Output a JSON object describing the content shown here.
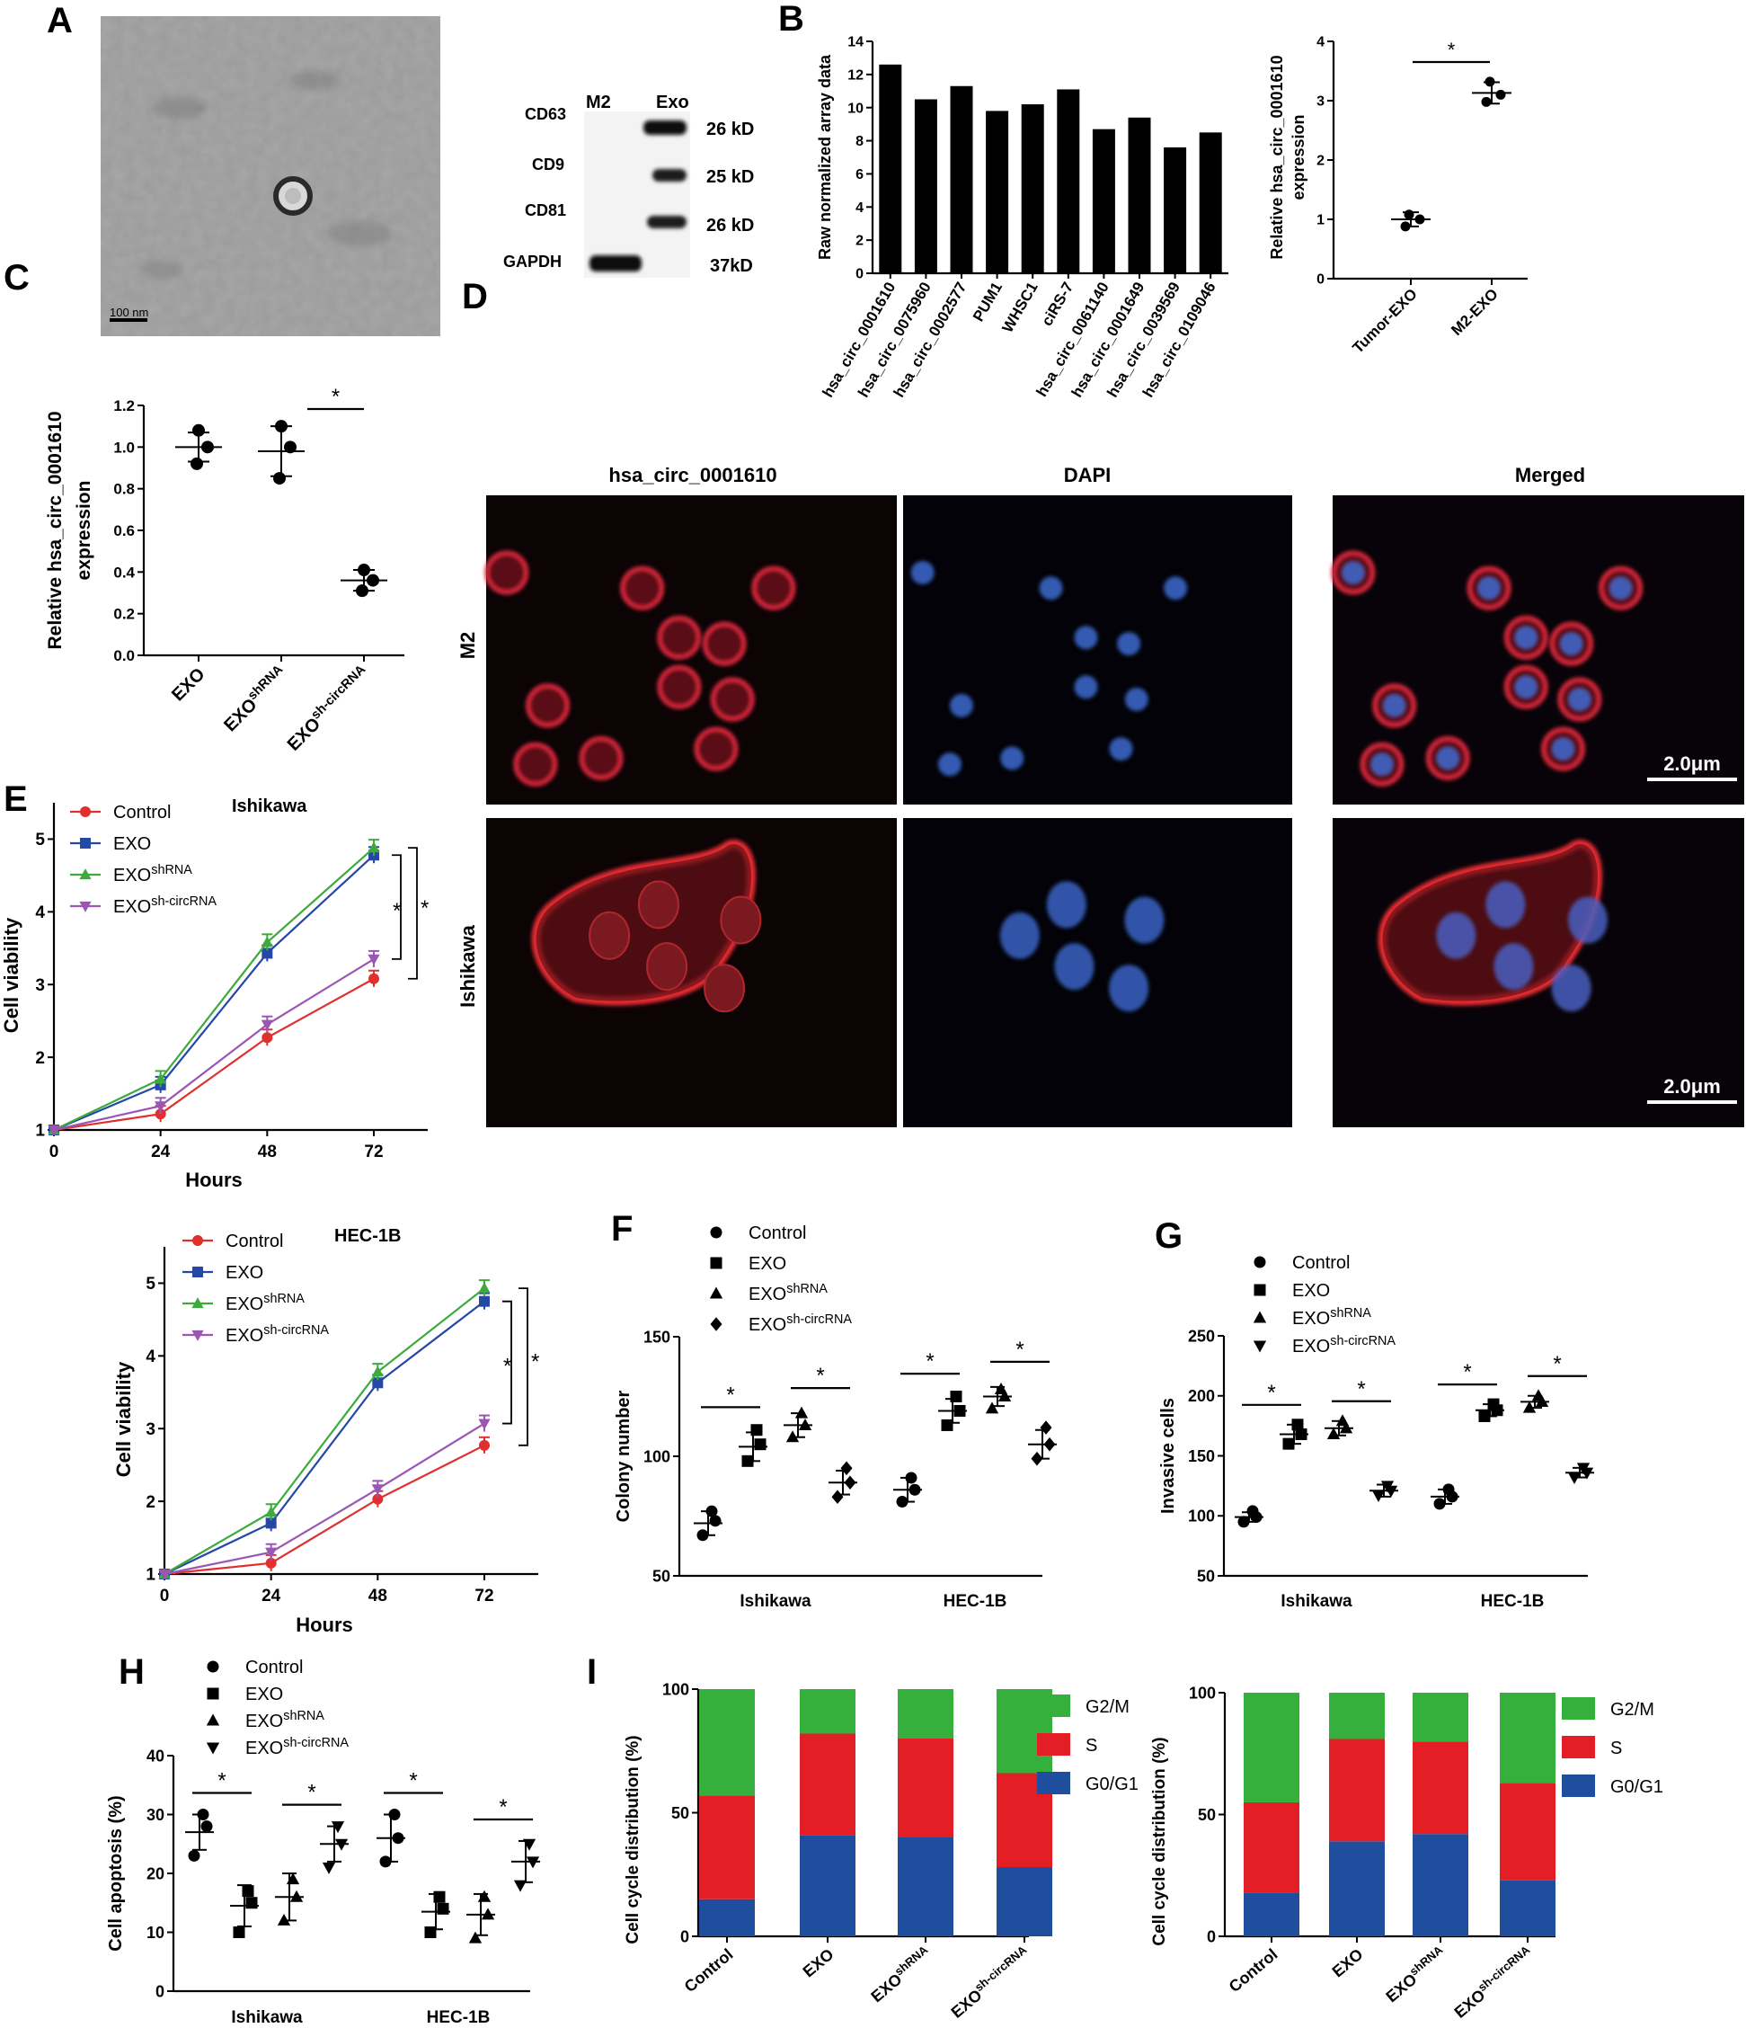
{
  "panel_letters": [
    "A",
    "B",
    "C",
    "D",
    "E",
    "F",
    "G",
    "H",
    "I"
  ],
  "panel_a": {
    "scale_bar": "100 nm",
    "blot_columns": [
      "M2",
      "Exo"
    ],
    "blot_rows": [
      {
        "protein": "CD63",
        "size": "26 kD"
      },
      {
        "protein": "CD9",
        "size": "25 kD"
      },
      {
        "protein": "CD81",
        "size": "26 kD"
      },
      {
        "protein": "GAPDH",
        "size": "37kD"
      }
    ]
  },
  "panel_d": {
    "columns": [
      "hsa_circ_0001610",
      "DAPI",
      "Merged"
    ],
    "rows": [
      "M2",
      "Ishikawa"
    ],
    "scale_label": "2.0μm"
  },
  "chart_data": [
    {
      "id": "B1",
      "type": "bar",
      "ylabel": "Raw normalized array data",
      "ylim": [
        0,
        14
      ],
      "yticks": [
        0,
        2,
        4,
        6,
        8,
        10,
        12,
        14
      ],
      "categories": [
        "hsa_circ_0001610",
        "hsa_circ_0075960",
        "hsa_circ_0002577",
        "PUM1",
        "WHSC1",
        "ciRS-7",
        "hsa_circ_0061140",
        "hsa_circ_0001649",
        "hsa_circ_0039569",
        "hsa_circ_0109046"
      ],
      "values": [
        12.6,
        10.5,
        11.3,
        9.8,
        10.2,
        11.1,
        8.7,
        9.4,
        7.6,
        8.5
      ]
    },
    {
      "id": "B2",
      "type": "scatter",
      "ylabel": "Relative hsa_circ_0001610 expression",
      "ylim": [
        0,
        4
      ],
      "yticks": [
        0,
        1,
        2,
        3,
        4
      ],
      "categories": [
        "Tumor-EXO",
        "M2-EXO"
      ],
      "points": [
        [
          1.08,
          0.88,
          1.0
        ],
        [
          3.32,
          2.98,
          3.1
        ]
      ],
      "mean": [
        1.0,
        3.13
      ],
      "sd": [
        0.12,
        0.18
      ],
      "sig": [
        {
          "from": 0,
          "to": 1,
          "label": "*"
        }
      ]
    },
    {
      "id": "C",
      "type": "scatter",
      "ylabel": "Relative hsa_circ_0001610 expression",
      "ylim": [
        0,
        1.2
      ],
      "yticks": [
        0.0,
        0.2,
        0.4,
        0.6,
        0.8,
        1.0,
        1.2
      ],
      "categories": [
        "EXO",
        "EXO^shRNA",
        "EXO^sh-circRNA"
      ],
      "points": [
        [
          1.08,
          0.92,
          1.0
        ],
        [
          1.1,
          0.85,
          1.0
        ],
        [
          0.41,
          0.31,
          0.36
        ]
      ],
      "mean": [
        1.0,
        0.98,
        0.36
      ],
      "sd": [
        0.07,
        0.12,
        0.05
      ],
      "sig": [
        {
          "from": 1,
          "to": 2,
          "label": "*"
        }
      ]
    },
    {
      "id": "E1",
      "type": "line",
      "title": "Ishikawa",
      "xlabel": "Hours",
      "ylabel": "Cell viability",
      "x": [
        0,
        24,
        48,
        72
      ],
      "ylim": [
        1,
        5.5
      ],
      "yticks": [
        1,
        2,
        3,
        4,
        5
      ],
      "series": [
        {
          "name": "Control",
          "color": "#e0302e",
          "marker": "circle",
          "values": [
            1.0,
            1.22,
            2.27,
            3.08
          ]
        },
        {
          "name": "EXO",
          "color": "#2447a8",
          "marker": "square",
          "values": [
            1.0,
            1.62,
            3.43,
            4.78
          ]
        },
        {
          "name": "EXO^shRNA",
          "color": "#3cab3c",
          "marker": "triangle",
          "values": [
            1.0,
            1.7,
            3.58,
            4.88
          ]
        },
        {
          "name": "EXO^sh-circRNA",
          "color": "#9b55b5",
          "marker": "triangle-down",
          "values": [
            1.0,
            1.33,
            2.45,
            3.35
          ]
        }
      ],
      "sig": [
        "*",
        "*"
      ]
    },
    {
      "id": "E2",
      "type": "line",
      "title": "HEC-1B",
      "xlabel": "Hours",
      "ylabel": "Cell viability",
      "x": [
        0,
        24,
        48,
        72
      ],
      "ylim": [
        1,
        5.5
      ],
      "yticks": [
        1,
        2,
        3,
        4,
        5
      ],
      "series": [
        {
          "name": "Control",
          "color": "#e0302e",
          "marker": "circle",
          "values": [
            1.0,
            1.15,
            2.03,
            2.77
          ]
        },
        {
          "name": "EXO",
          "color": "#2447a8",
          "marker": "square",
          "values": [
            1.0,
            1.7,
            3.63,
            4.75
          ]
        },
        {
          "name": "EXO^shRNA",
          "color": "#3cab3c",
          "marker": "triangle",
          "values": [
            1.0,
            1.85,
            3.78,
            4.93
          ]
        },
        {
          "name": "EXO^sh-circRNA",
          "color": "#9b55b5",
          "marker": "triangle-down",
          "values": [
            1.0,
            1.3,
            2.17,
            3.07
          ]
        }
      ],
      "sig": [
        "*",
        "*"
      ]
    },
    {
      "id": "F",
      "type": "scatter",
      "ylabel": "Colony number",
      "ylim": [
        50,
        150
      ],
      "yticks": [
        50,
        100,
        150
      ],
      "groups": [
        "Ishikawa",
        "HEC-1B"
      ],
      "legend": [
        {
          "name": "Control",
          "marker": "circle"
        },
        {
          "name": "EXO",
          "marker": "square"
        },
        {
          "name": "EXO^shRNA",
          "marker": "triangle"
        },
        {
          "name": "EXO^sh-circRNA",
          "marker": "diamond"
        }
      ],
      "points": [
        [
          [
            77,
            67,
            73
          ],
          [
            111,
            98,
            105
          ],
          [
            118,
            108,
            113
          ],
          [
            95,
            83,
            89
          ]
        ],
        [
          [
            91,
            81,
            86
          ],
          [
            125,
            113,
            119
          ],
          [
            128,
            120,
            125
          ],
          [
            112,
            99,
            105
          ]
        ]
      ],
      "mean": [
        [
          72,
          104,
          113,
          89
        ],
        [
          86,
          119,
          125,
          105
        ]
      ],
      "sd": [
        [
          5,
          6,
          5,
          5
        ],
        [
          5,
          5,
          4,
          6
        ]
      ],
      "sig": [
        [
          0,
          1
        ],
        [
          2,
          3
        ]
      ]
    },
    {
      "id": "G",
      "type": "scatter",
      "ylabel": "Invasive cells",
      "ylim": [
        50,
        250
      ],
      "yticks": [
        50,
        100,
        150,
        200,
        250
      ],
      "groups": [
        "Ishikawa",
        "HEC-1B"
      ],
      "legend": [
        {
          "name": "Control",
          "marker": "circle"
        },
        {
          "name": "EXO",
          "marker": "square"
        },
        {
          "name": "EXO^shRNA",
          "marker": "triangle"
        },
        {
          "name": "EXO^sh-circRNA",
          "marker": "triangle-down"
        }
      ],
      "points": [
        [
          [
            104,
            95,
            99
          ],
          [
            176,
            160,
            168
          ],
          [
            179,
            168,
            173
          ],
          [
            125,
            117,
            121
          ]
        ],
        [
          [
            122,
            110,
            116
          ],
          [
            193,
            183,
            188
          ],
          [
            200,
            190,
            195
          ],
          [
            140,
            132,
            136
          ]
        ]
      ],
      "mean": [
        [
          99,
          168,
          173,
          121
        ],
        [
          116,
          188,
          195,
          136
        ]
      ],
      "sd": [
        [
          4,
          8,
          6,
          5
        ],
        [
          6,
          5,
          5,
          4
        ]
      ],
      "sig": [
        [
          0,
          1
        ],
        [
          2,
          3
        ]
      ]
    },
    {
      "id": "H",
      "type": "scatter",
      "ylabel": "Cell apoptosis (%)",
      "ylim": [
        0,
        40
      ],
      "yticks": [
        0,
        10,
        20,
        30,
        40
      ],
      "groups": [
        "Ishikawa",
        "HEC-1B"
      ],
      "legend": [
        {
          "name": "Control",
          "marker": "circle"
        },
        {
          "name": "EXO",
          "marker": "square"
        },
        {
          "name": "EXO^shRNA",
          "marker": "triangle"
        },
        {
          "name": "EXO^sh-circRNA",
          "marker": "triangle-down"
        }
      ],
      "points": [
        [
          [
            30,
            23,
            28
          ],
          [
            17,
            10,
            15
          ],
          [
            19,
            12,
            16
          ],
          [
            28,
            21,
            25
          ]
        ],
        [
          [
            30,
            22,
            26
          ],
          [
            16,
            10,
            14
          ],
          [
            16,
            9,
            13
          ],
          [
            25,
            18,
            22
          ]
        ]
      ],
      "mean": [
        [
          27,
          14.5,
          16,
          25
        ],
        [
          26,
          13.5,
          13,
          22
        ]
      ],
      "sd": [
        [
          3,
          3.5,
          4,
          3
        ],
        [
          4,
          3,
          3.5,
          3.5
        ]
      ],
      "sig": [
        [
          0,
          1
        ],
        [
          2,
          3
        ]
      ]
    },
    {
      "id": "I1",
      "type": "bar",
      "stacked": true,
      "ylabel": "Cell cycle distribution (%)",
      "ylim": [
        0,
        100
      ],
      "yticks": [
        0,
        50,
        100
      ],
      "categories": [
        "Control",
        "EXO",
        "EXO^shRNA",
        "EXO^sh-circRNA"
      ],
      "series": [
        {
          "name": "G0/G1",
          "color": "#1f4e9e",
          "values": [
            15,
            41,
            40,
            28
          ]
        },
        {
          "name": "S",
          "color": "#e31e24",
          "values": [
            42,
            41,
            40,
            38
          ]
        },
        {
          "name": "G2/M",
          "color": "#36b03c",
          "values": [
            43,
            18,
            20,
            34
          ]
        }
      ]
    },
    {
      "id": "I2",
      "type": "bar",
      "stacked": true,
      "ylabel": "Cell cycle distribution (%)",
      "ylim": [
        0,
        100
      ],
      "yticks": [
        0,
        50,
        100
      ],
      "categories": [
        "Control",
        "EXO",
        "EXO^shRNA",
        "EXO^sh-circRNA"
      ],
      "series": [
        {
          "name": "G0/G1",
          "color": "#1f4e9e",
          "values": [
            18,
            39,
            42,
            23
          ]
        },
        {
          "name": "S",
          "color": "#e31e24",
          "values": [
            37,
            42,
            38,
            40
          ]
        },
        {
          "name": "G2/M",
          "color": "#36b03c",
          "values": [
            45,
            19,
            20,
            37
          ]
        }
      ]
    }
  ]
}
